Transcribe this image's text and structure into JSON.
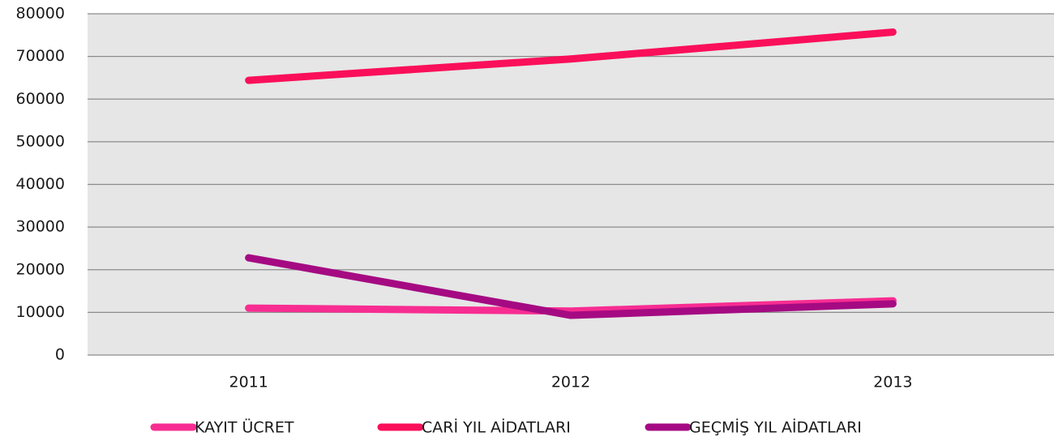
{
  "chart_data": {
    "type": "line",
    "categories": [
      "2011",
      "2012",
      "2013"
    ],
    "series": [
      {
        "name": "KAYIT ÜCRET",
        "color": "#f72d92",
        "values": [
          11000,
          10300,
          12700
        ]
      },
      {
        "name": "CARİ YIL AİDATLARI",
        "color": "#fa0f5a",
        "values": [
          64400,
          69400,
          75700
        ]
      },
      {
        "name": "GEÇMİŞ YIL AİDATLARI",
        "color": "#a50a82",
        "values": [
          22800,
          9300,
          12000
        ]
      }
    ],
    "ylim": [
      0,
      80000
    ],
    "yticks": [
      0,
      10000,
      20000,
      30000,
      40000,
      50000,
      60000,
      70000,
      80000
    ],
    "grid": true,
    "legend": "bottom"
  }
}
